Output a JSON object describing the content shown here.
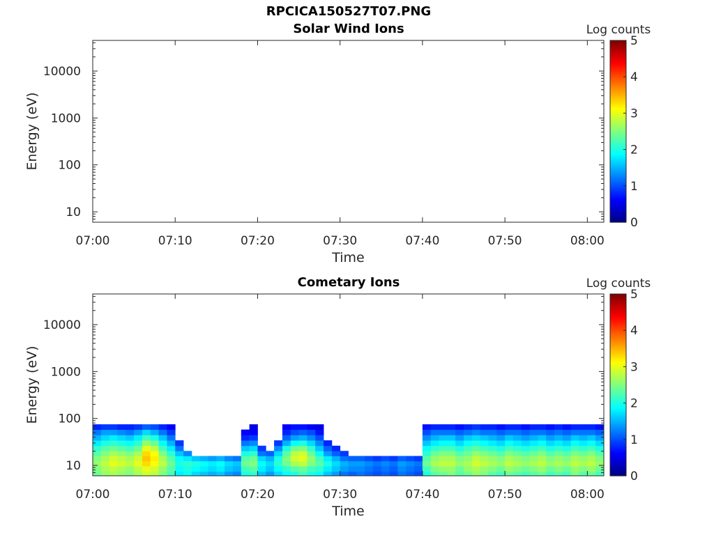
{
  "figure": {
    "title": "RPCICA150527T07.PNG"
  },
  "chart_data": [
    {
      "type": "heatmap",
      "title": "Solar Wind Ions",
      "xlabel": "Time",
      "ylabel": "Energy (eV)",
      "x_ticks": [
        "07:00",
        "07:10",
        "07:20",
        "07:30",
        "07:40",
        "07:50",
        "08:00"
      ],
      "xlim": [
        "07:00",
        "08:02"
      ],
      "y_scale": "log",
      "y_ticks": [
        10,
        100,
        1000,
        10000
      ],
      "ylim": [
        6,
        45000
      ],
      "colorbar": {
        "label": "Log counts",
        "min": 0,
        "max": 5,
        "ticks": [
          0,
          1,
          2,
          3,
          4,
          5
        ],
        "colormap": "jet"
      },
      "cells": []
    },
    {
      "type": "heatmap",
      "title": "Cometary Ions",
      "xlabel": "Time",
      "ylabel": "Energy (eV)",
      "x_ticks": [
        "07:00",
        "07:10",
        "07:20",
        "07:30",
        "07:40",
        "07:50",
        "08:00"
      ],
      "xlim": [
        "07:00",
        "08:02"
      ],
      "y_scale": "log",
      "y_ticks": [
        10,
        100,
        1000,
        10000
      ],
      "ylim": [
        6,
        45000
      ],
      "colorbar": {
        "label": "Log counts",
        "min": 0,
        "max": 5,
        "ticks": [
          0,
          1,
          2,
          3,
          4,
          5
        ],
        "colormap": "jet"
      },
      "energy_bins": [
        6.5,
        8.5,
        11,
        14,
        18,
        23,
        30,
        39,
        51,
        66
      ],
      "time_bins": [
        "07:00",
        "07:01",
        "07:02",
        "07:03",
        "07:04",
        "07:05",
        "07:06",
        "07:07",
        "07:08",
        "07:09",
        "07:10",
        "07:11",
        "07:12",
        "07:13",
        "07:14",
        "07:15",
        "07:16",
        "07:17",
        "07:18",
        "07:19",
        "07:20",
        "07:21",
        "07:22",
        "07:23",
        "07:24",
        "07:25",
        "07:26",
        "07:27",
        "07:28",
        "07:29",
        "07:30",
        "07:31",
        "07:32",
        "07:33",
        "07:34",
        "07:35",
        "07:36",
        "07:37",
        "07:38",
        "07:39",
        "07:40",
        "07:41",
        "07:42",
        "07:43",
        "07:44",
        "07:45",
        "07:46",
        "07:47",
        "07:48",
        "07:49",
        "07:50",
        "07:51",
        "07:52",
        "07:53",
        "07:54",
        "07:55",
        "07:56",
        "07:57",
        "07:58",
        "07:59",
        "08:00",
        "08:01"
      ],
      "values_note": "rows = energy bins (low to high), columns = time bins; log counts, null = no counts",
      "values": [
        [
          2.4,
          2.6,
          2.7,
          2.6,
          2.5,
          2.7,
          2.9,
          2.8,
          2.5,
          2.2,
          1.8,
          1.9,
          1.7,
          1.6,
          1.5,
          1.6,
          1.4,
          1.3,
          2.0,
          2.1,
          1.6,
          1.4,
          1.7,
          1.9,
          2.0,
          2.2,
          2.0,
          1.9,
          1.6,
          1.4,
          1.2,
          1.1,
          1.2,
          1.1,
          1.0,
          1.1,
          1.0,
          1.2,
          1.1,
          1.0,
          2.0,
          2.3,
          2.4,
          2.5,
          2.3,
          2.4,
          2.6,
          2.5,
          2.3,
          2.2,
          2.4,
          2.3,
          2.2,
          2.3,
          2.4,
          2.2,
          2.3,
          2.2,
          2.5,
          2.3,
          2.4,
          2.2
        ],
        [
          2.5,
          2.7,
          2.8,
          2.7,
          2.6,
          2.8,
          3.0,
          2.9,
          2.6,
          2.3,
          1.9,
          2.0,
          1.9,
          1.8,
          1.7,
          1.8,
          1.6,
          1.5,
          2.2,
          2.3,
          1.8,
          1.6,
          1.9,
          2.1,
          2.3,
          2.4,
          2.2,
          2.1,
          1.8,
          1.6,
          1.4,
          1.3,
          1.3,
          1.2,
          1.1,
          1.2,
          1.1,
          1.3,
          1.2,
          1.1,
          2.2,
          2.5,
          2.6,
          2.6,
          2.4,
          2.6,
          2.7,
          2.6,
          2.5,
          2.4,
          2.6,
          2.5,
          2.4,
          2.5,
          2.6,
          2.4,
          2.5,
          2.4,
          2.6,
          2.5,
          2.6,
          2.4
        ],
        [
          2.6,
          2.8,
          3.0,
          2.9,
          2.8,
          3.0,
          3.3,
          3.1,
          2.8,
          2.4,
          2.0,
          2.1,
          2.0,
          1.9,
          1.8,
          1.9,
          1.7,
          1.6,
          2.4,
          2.5,
          1.9,
          1.7,
          2.1,
          2.4,
          2.7,
          2.8,
          2.5,
          2.3,
          2.0,
          1.7,
          1.5,
          1.4,
          1.4,
          1.3,
          1.2,
          1.3,
          1.2,
          1.4,
          1.3,
          1.2,
          2.4,
          2.7,
          2.8,
          2.8,
          2.6,
          2.7,
          2.9,
          2.8,
          2.7,
          2.6,
          2.8,
          2.7,
          2.6,
          2.7,
          2.8,
          2.6,
          2.7,
          2.6,
          2.8,
          2.7,
          2.8,
          2.6
        ],
        [
          2.5,
          2.7,
          2.9,
          2.8,
          2.7,
          2.9,
          3.4,
          3.2,
          2.7,
          2.3,
          1.9,
          1.8,
          1.6,
          1.5,
          1.4,
          1.5,
          1.3,
          1.2,
          2.3,
          2.4,
          1.7,
          1.5,
          2.0,
          2.5,
          2.9,
          3.0,
          2.6,
          2.2,
          1.8,
          1.5,
          1.2,
          1.1,
          1.1,
          1.0,
          0.9,
          1.0,
          0.9,
          1.1,
          1.0,
          0.9,
          2.3,
          2.6,
          2.7,
          2.7,
          2.5,
          2.6,
          2.8,
          2.7,
          2.6,
          2.5,
          2.7,
          2.6,
          2.5,
          2.6,
          2.7,
          2.5,
          2.6,
          2.5,
          2.7,
          2.6,
          2.7,
          2.5
        ],
        [
          2.3,
          2.5,
          2.7,
          2.6,
          2.5,
          2.7,
          3.3,
          3.1,
          2.5,
          2.1,
          1.6,
          1.3,
          null,
          null,
          null,
          null,
          null,
          null,
          2.0,
          2.1,
          1.2,
          1.1,
          1.7,
          2.3,
          2.8,
          2.9,
          2.4,
          1.9,
          1.4,
          1.1,
          0.9,
          null,
          null,
          null,
          null,
          null,
          null,
          null,
          null,
          null,
          2.1,
          2.4,
          2.5,
          2.5,
          2.3,
          2.4,
          2.6,
          2.5,
          2.4,
          2.3,
          2.5,
          2.4,
          2.3,
          2.4,
          2.5,
          2.3,
          2.4,
          2.3,
          2.5,
          2.4,
          2.5,
          2.3
        ],
        [
          2.1,
          2.3,
          2.4,
          2.3,
          2.2,
          2.4,
          3.0,
          2.8,
          2.2,
          1.8,
          1.2,
          null,
          null,
          null,
          null,
          null,
          null,
          null,
          1.6,
          1.7,
          0.9,
          null,
          1.3,
          2.0,
          2.4,
          2.5,
          2.1,
          1.6,
          1.1,
          0.8,
          null,
          null,
          null,
          null,
          null,
          null,
          null,
          null,
          null,
          null,
          1.9,
          2.1,
          2.2,
          2.2,
          2.0,
          2.2,
          2.3,
          2.2,
          2.1,
          2.0,
          2.2,
          2.1,
          2.0,
          2.1,
          2.2,
          2.0,
          2.1,
          2.0,
          2.2,
          2.1,
          2.2,
          2.0
        ],
        [
          1.8,
          2.0,
          2.1,
          2.0,
          1.9,
          2.1,
          2.6,
          2.4,
          1.9,
          1.5,
          0.9,
          null,
          null,
          null,
          null,
          null,
          null,
          null,
          1.2,
          1.3,
          null,
          null,
          0.9,
          1.5,
          1.9,
          2.0,
          1.7,
          1.3,
          0.8,
          null,
          null,
          null,
          null,
          null,
          null,
          null,
          null,
          null,
          null,
          null,
          1.6,
          1.8,
          1.9,
          1.9,
          1.7,
          1.9,
          2.0,
          1.9,
          1.8,
          1.7,
          1.9,
          1.8,
          1.7,
          1.8,
          1.9,
          1.7,
          1.8,
          1.7,
          1.9,
          1.8,
          1.9,
          1.7
        ],
        [
          1.5,
          1.7,
          1.8,
          1.7,
          1.6,
          1.8,
          2.2,
          2.0,
          1.6,
          1.2,
          null,
          null,
          null,
          null,
          null,
          null,
          null,
          null,
          0.8,
          0.9,
          null,
          null,
          null,
          1.1,
          1.4,
          1.5,
          1.3,
          1.0,
          null,
          null,
          null,
          null,
          null,
          null,
          null,
          null,
          null,
          null,
          null,
          null,
          1.3,
          1.5,
          1.6,
          1.6,
          1.4,
          1.6,
          1.7,
          1.6,
          1.5,
          1.4,
          1.6,
          1.5,
          1.4,
          1.5,
          1.6,
          1.4,
          1.5,
          1.4,
          1.6,
          1.5,
          1.6,
          1.4
        ],
        [
          1.2,
          1.4,
          1.4,
          1.3,
          1.2,
          1.4,
          1.7,
          1.5,
          1.2,
          0.9,
          null,
          null,
          null,
          null,
          null,
          null,
          null,
          null,
          0.6,
          0.6,
          null,
          null,
          null,
          0.8,
          1.0,
          1.1,
          1.0,
          0.7,
          null,
          null,
          null,
          null,
          null,
          null,
          null,
          null,
          null,
          null,
          null,
          null,
          1.0,
          1.2,
          1.2,
          1.2,
          1.1,
          1.2,
          1.3,
          1.2,
          1.2,
          1.1,
          1.2,
          1.2,
          1.1,
          1.2,
          1.2,
          1.1,
          1.2,
          1.1,
          1.2,
          1.2,
          1.2,
          1.1
        ],
        [
          0.8,
          0.9,
          0.9,
          0.8,
          0.8,
          0.9,
          1.1,
          1.0,
          0.8,
          0.6,
          null,
          null,
          null,
          null,
          null,
          null,
          null,
          null,
          null,
          0.5,
          null,
          null,
          null,
          0.6,
          0.7,
          0.7,
          0.6,
          0.5,
          null,
          null,
          null,
          null,
          null,
          null,
          null,
          null,
          null,
          null,
          null,
          null,
          0.7,
          0.8,
          0.8,
          0.8,
          0.7,
          0.8,
          0.9,
          0.8,
          0.8,
          0.7,
          0.8,
          0.8,
          0.7,
          0.8,
          0.8,
          0.7,
          0.8,
          0.7,
          0.8,
          0.8,
          0.8,
          0.7
        ]
      ]
    }
  ]
}
